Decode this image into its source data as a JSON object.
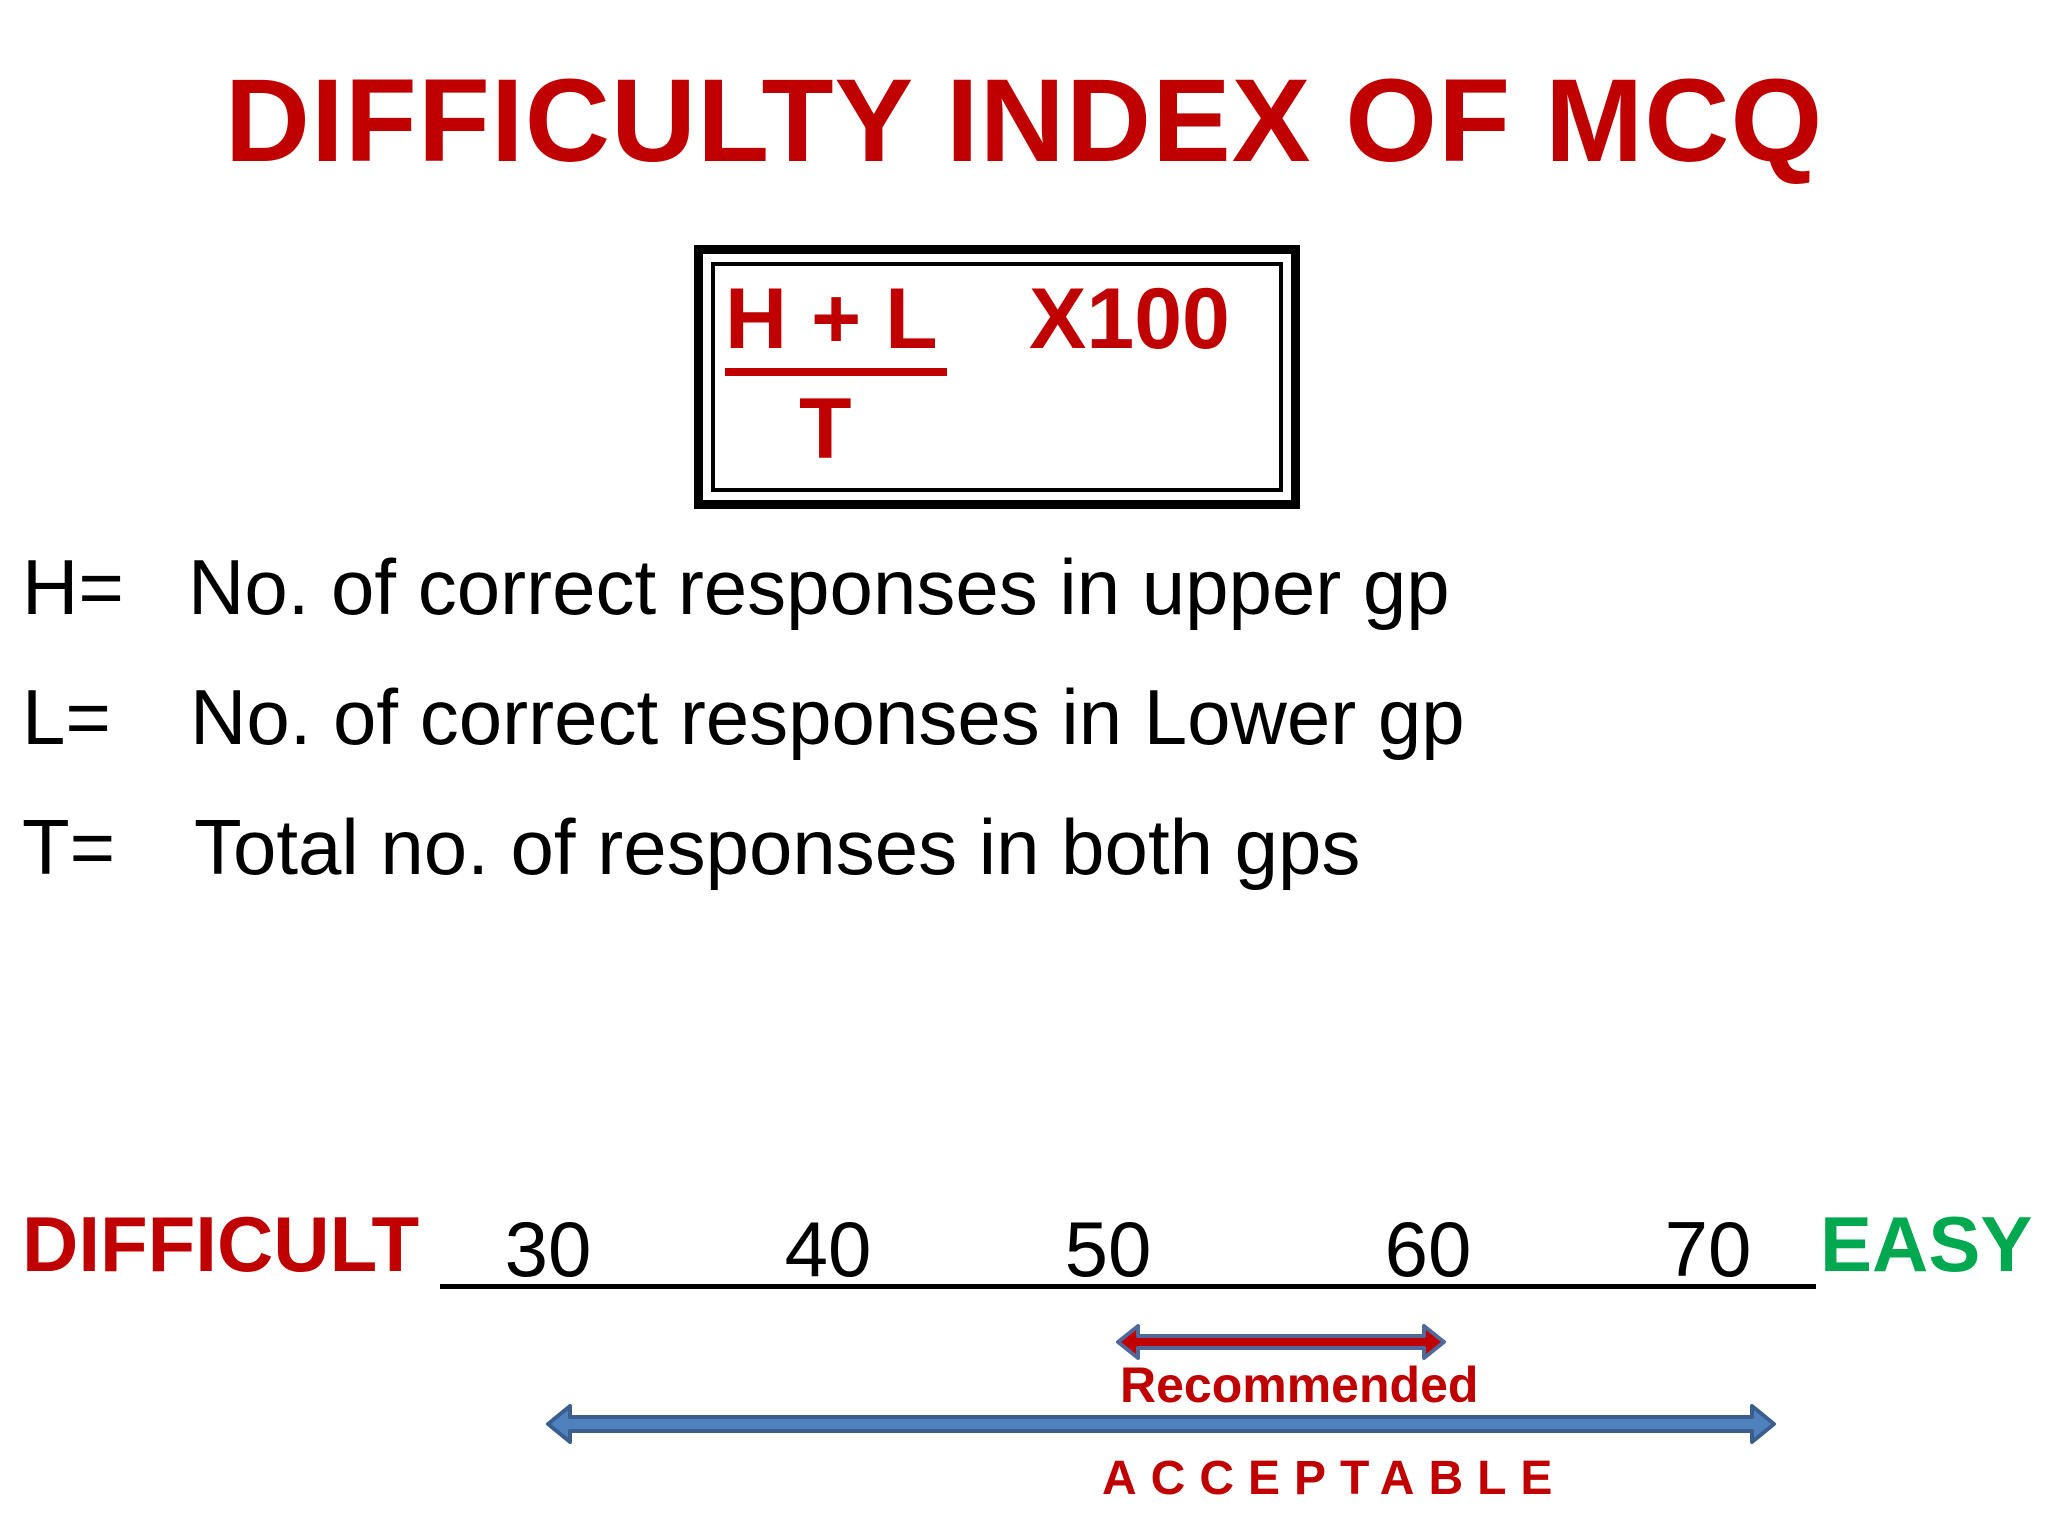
{
  "title": "DIFFICULTY INDEX OF MCQ",
  "formula": {
    "numerator": "H + L",
    "denominator": "T",
    "multiplier": "X100"
  },
  "definitions": [
    {
      "var": "H=",
      "text": "No. of correct responses in upper gp"
    },
    {
      "var": "L=",
      "text": "No. of correct responses in Lower gp"
    },
    {
      "var": "T=",
      "text": "Total no. of responses in both gps"
    }
  ],
  "scale": {
    "left_label": "DIFFICULT",
    "right_label": "EASY",
    "ticks": [
      "30",
      "40",
      "50",
      "60",
      "70"
    ],
    "recommended": {
      "label": "Recommended",
      "from": 50,
      "to": 60
    },
    "acceptable": {
      "label": "ACCEPTABLE",
      "from": 30,
      "to": 70
    }
  },
  "colors": {
    "title": "#c00000",
    "difficult": "#c00000",
    "easy": "#00a84f",
    "recommended_arrow": "#c00000",
    "acceptable_arrow": "#4f81bd"
  }
}
